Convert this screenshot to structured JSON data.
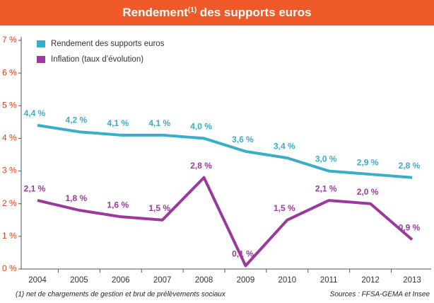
{
  "chart_data": {
    "type": "line",
    "title": [
      "Rendement",
      "(1)",
      " des supports euros"
    ],
    "categories": [
      "2004",
      "2005",
      "2006",
      "2007",
      "2008",
      "2009",
      "2010",
      "2011",
      "2012",
      "2013"
    ],
    "series": [
      {
        "name": "Rendement des supports euros",
        "color": "#3aaec8",
        "values": [
          4.4,
          4.2,
          4.1,
          4.1,
          4.0,
          3.6,
          3.4,
          3.0,
          2.9,
          2.8
        ],
        "value_labels": [
          "4,4 %",
          "4,2 %",
          "4,1 %",
          "4,1 %",
          "4,0 %",
          "3,6 %",
          "3,4 %",
          "3,0 %",
          "2,9 %",
          "2,8 %"
        ]
      },
      {
        "name": "Inflation (taux d’évolution)",
        "color": "#9b3a9c",
        "values": [
          2.1,
          1.8,
          1.6,
          1.5,
          2.8,
          0.1,
          1.5,
          2.1,
          2.0,
          0.9
        ],
        "value_labels": [
          "2,1 %",
          "1,8 %",
          "1,6 %",
          "1,5 %",
          "2,8 %",
          "0,1 %",
          "1,5 %",
          "2,1 %",
          "2,0 %",
          "0,9 %"
        ]
      }
    ],
    "ylim": [
      0,
      7
    ],
    "yticks": [
      {
        "value": 0,
        "label": "0 %"
      },
      {
        "value": 1,
        "label": "1 %"
      },
      {
        "value": 2,
        "label": "2 %"
      },
      {
        "value": 3,
        "label": "3 %"
      },
      {
        "value": 4,
        "label": "4 %"
      },
      {
        "value": 5,
        "label": "5 %"
      },
      {
        "value": 6,
        "label": "6 %"
      },
      {
        "value": 7,
        "label": "7 %"
      }
    ],
    "legend": "upper left",
    "title_color": "#f05a28",
    "footnote": "(1) net de chargements de gestion et brut de prélèvements sociaux",
    "source": "Sources : FFSA-GEMA et Insee"
  }
}
